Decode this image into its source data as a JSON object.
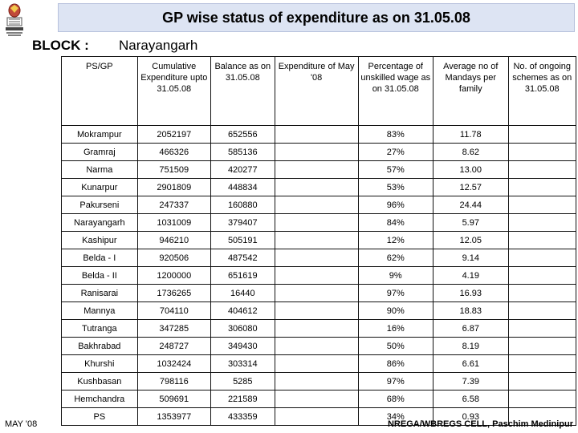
{
  "header": {
    "title": "GP wise status of expenditure as on 31.05.08",
    "block_label": "BLOCK :",
    "block_name": "Narayangarh"
  },
  "table": {
    "columns": [
      "PS/GP",
      "Cumulative Expenditure upto 31.05.08",
      "Balance as on 31.05.08",
      "Expenditure of May '08",
      "Percentage of unskilled wage as on 31.05.08",
      "Average no of Mandays per family",
      "No. of ongoing schemes as on 31.05.08"
    ],
    "rows": [
      [
        "Mokrampur",
        "2052197",
        "652556",
        "",
        "83%",
        "11.78",
        ""
      ],
      [
        "Gramraj",
        "466326",
        "585136",
        "",
        "27%",
        "8.62",
        ""
      ],
      [
        "Narma",
        "751509",
        "420277",
        "",
        "57%",
        "13.00",
        ""
      ],
      [
        "Kunarpur",
        "2901809",
        "448834",
        "",
        "53%",
        "12.57",
        ""
      ],
      [
        "Pakurseni",
        "247337",
        "160880",
        "",
        "96%",
        "24.44",
        ""
      ],
      [
        "Narayangarh",
        "1031009",
        "379407",
        "",
        "84%",
        "5.97",
        ""
      ],
      [
        "Kashipur",
        "946210",
        "505191",
        "",
        "12%",
        "12.05",
        ""
      ],
      [
        "Belda - I",
        "920506",
        "487542",
        "",
        "62%",
        "9.14",
        ""
      ],
      [
        "Belda - II",
        "1200000",
        "651619",
        "",
        "9%",
        "4.19",
        ""
      ],
      [
        "Ranisarai",
        "1736265",
        "16440",
        "",
        "97%",
        "16.93",
        ""
      ],
      [
        "Mannya",
        "704110",
        "404612",
        "",
        "90%",
        "18.83",
        ""
      ],
      [
        "Tutranga",
        "347285",
        "306080",
        "",
        "16%",
        "6.87",
        ""
      ],
      [
        "Bakhrabad",
        "248727",
        "349430",
        "",
        "50%",
        "8.19",
        ""
      ],
      [
        "Khurshi",
        "1032424",
        "303314",
        "",
        "86%",
        "6.61",
        ""
      ],
      [
        "Kushbasan",
        "798116",
        "5285",
        "",
        "97%",
        "7.39",
        ""
      ],
      [
        "Hemchandra",
        "509691",
        "221589",
        "",
        "68%",
        "6.58",
        ""
      ],
      [
        "PS",
        "1353977",
        "433359",
        "",
        "34%",
        "0.93",
        ""
      ]
    ]
  },
  "footer": {
    "left": "MAY '08",
    "right": "NREGA/WBREGS CELL, Paschim Medinipur"
  },
  "colors": {
    "title_bg": "#dde4f3"
  },
  "icons": {
    "logo": "government-emblem-icon"
  }
}
